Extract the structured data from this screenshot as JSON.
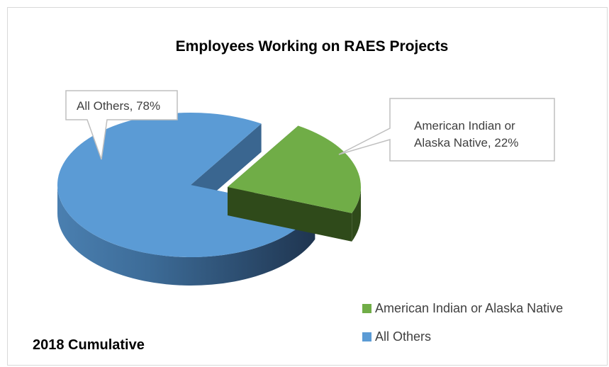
{
  "chart_data": {
    "type": "pie",
    "style": "3d-exploded",
    "title": "Employees Working on RAES Projects",
    "slices": [
      {
        "name": "American Indian or Alaska Native",
        "value": 22,
        "label": "American Indian or Alaska Native, 22%",
        "label_lines": [
          "American Indian or",
          "Alaska Native, 22%"
        ],
        "color": "#70ad47",
        "side_color": "#2f4a1a"
      },
      {
        "name": "All Others",
        "value": 78,
        "label": "All Others, 78%",
        "label_lines": [
          "All Others, 78%"
        ],
        "color": "#5b9bd5",
        "side_color": "#2e5273"
      }
    ],
    "legend": {
      "position": "bottom-right",
      "entries": [
        "American Indian or Alaska Native",
        "All Others"
      ]
    },
    "annotation": "2018 Cumulative"
  }
}
